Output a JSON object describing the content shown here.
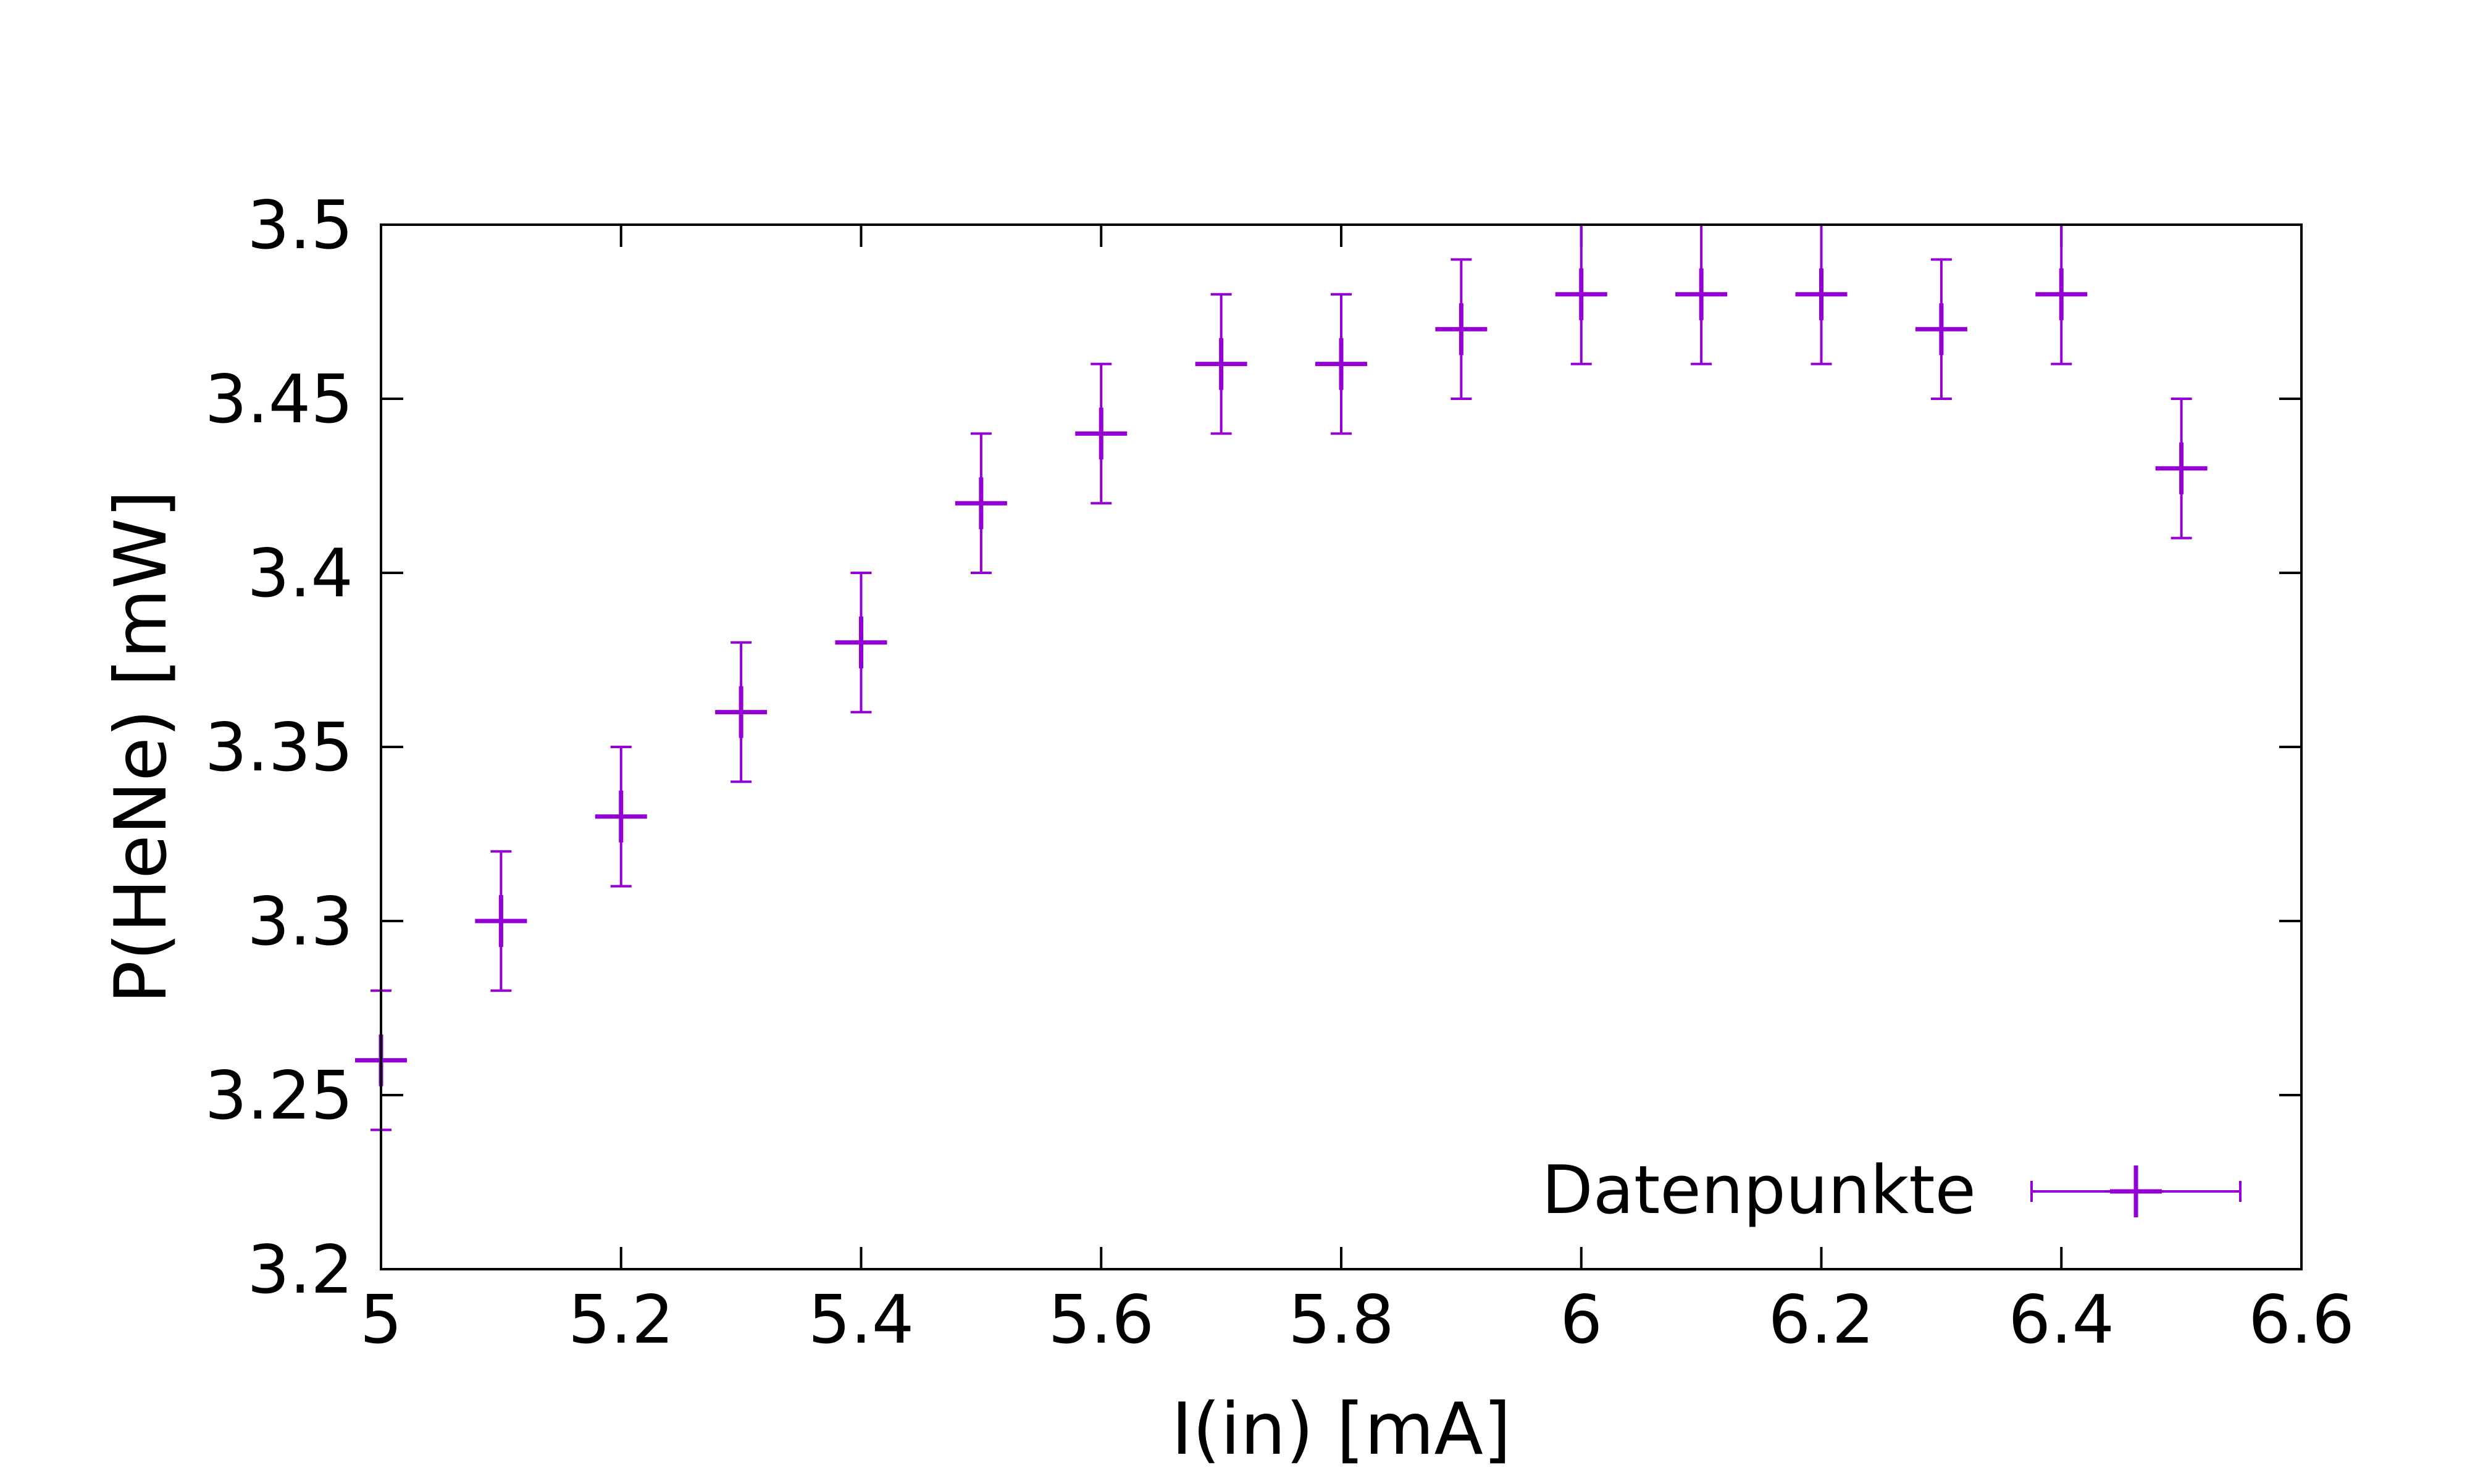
{
  "chart_data": {
    "type": "scatter",
    "title": "",
    "xlabel": "I(in) [mA]",
    "ylabel": "P(HeNe) [mW]",
    "xlim": [
      5,
      6.6
    ],
    "ylim": [
      3.2,
      3.5
    ],
    "xticks": [
      "5",
      "5.2",
      "5.4",
      "5.6",
      "5.8",
      "6",
      "6.2",
      "6.4",
      "6.6"
    ],
    "yticks": [
      "3.2",
      "3.25",
      "3.3",
      "3.35",
      "3.4",
      "3.45",
      "3.5"
    ],
    "grid": false,
    "legend_position": "bottom-right",
    "series": [
      {
        "name": "Datenpunkte",
        "color": "#9400D3",
        "marker": "plus-with-errorbars",
        "x": [
          5.0,
          5.1,
          5.2,
          5.3,
          5.4,
          5.5,
          5.6,
          5.7,
          5.8,
          5.9,
          6.0,
          6.1,
          6.2,
          6.3,
          6.4,
          6.5
        ],
        "y": [
          3.26,
          3.3,
          3.33,
          3.36,
          3.38,
          3.42,
          3.44,
          3.46,
          3.46,
          3.47,
          3.48,
          3.48,
          3.48,
          3.47,
          3.48,
          3.43
        ],
        "y_error": [
          0.02,
          0.02,
          0.02,
          0.02,
          0.02,
          0.02,
          0.02,
          0.02,
          0.02,
          0.02,
          0.02,
          0.02,
          0.02,
          0.02,
          0.02,
          0.02
        ]
      }
    ]
  }
}
